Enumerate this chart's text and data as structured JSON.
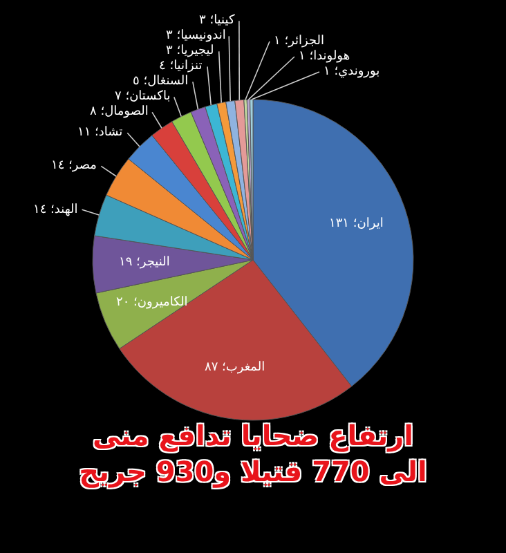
{
  "chart_data": {
    "type": "pie",
    "title": "ارتفاع ضحايا تدافع منى\nالى 770 قتيلا و930 جريح",
    "categories": [
      "ايران؛",
      "المغرب؛",
      "الكاميرون؛",
      "النيجر؛",
      "الهند؛",
      "مصر؛",
      "تشاد؛",
      "الصومال؛",
      "باكستان؛",
      "السنغال؛",
      "تنزانيا؛",
      "ليجيريا؛",
      "اندونيسيا؛",
      "كينيا؛",
      "الجزائر؛",
      "هولوندا؛",
      "بوروندي؛"
    ],
    "values": [
      131,
      87,
      20,
      19,
      14,
      14,
      11,
      8,
      7,
      5,
      4,
      3,
      3,
      3,
      1,
      1,
      1
    ],
    "value_labels": [
      "١٣١",
      "٨٧",
      "٢٠",
      "١٩",
      "١٤",
      "١٤",
      "١١",
      "٨",
      "٧",
      "٥",
      "٤",
      "٣",
      "٣",
      "٣",
      "١",
      "١",
      "١"
    ],
    "colors": [
      "#3f6fb0",
      "#b8413d",
      "#8fb04c",
      "#6f559a",
      "#3e9fbb",
      "#f08a35",
      "#4a86d0",
      "#d8403b",
      "#93c94e",
      "#8a62b8",
      "#3cb6d4",
      "#f59a3a",
      "#8fb3e0",
      "#e49a98",
      "#c5d99f",
      "#b6a7cf",
      "#9fd0df"
    ]
  }
}
